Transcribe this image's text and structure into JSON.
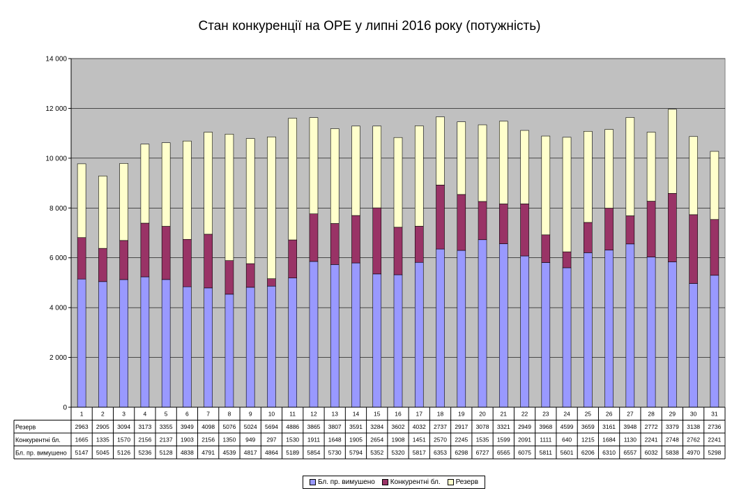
{
  "colors": {
    "plot_bg": "#c0c0c0",
    "series": [
      "#9999ff",
      "#993366",
      "#ffffcc"
    ]
  },
  "chart_data": {
    "type": "bar",
    "stacked": true,
    "title": "Стан конкуренції на ОРЕ  у липні 2016 року (потужність)",
    "categories": [
      "1",
      "2",
      "3",
      "4",
      "5",
      "6",
      "7",
      "8",
      "9",
      "10",
      "11",
      "12",
      "13",
      "14",
      "15",
      "16",
      "17",
      "18",
      "19",
      "20",
      "21",
      "22",
      "23",
      "24",
      "25",
      "26",
      "27",
      "28",
      "29",
      "30",
      "31"
    ],
    "ylim": [
      0,
      14000
    ],
    "yticks": [
      0,
      2000,
      4000,
      6000,
      8000,
      10000,
      12000,
      14000
    ],
    "ytick_labels": [
      "0",
      "2 000",
      "4 000",
      "6 000",
      "8 000",
      "10 000",
      "12 000",
      "14 000"
    ],
    "grid": true,
    "legend_position": "bottom",
    "table_below": true,
    "series": [
      {
        "name": "Бл. пр. вимушено",
        "values": [
          5147,
          5045,
          5126,
          5236,
          5128,
          4838,
          4791,
          4539,
          4817,
          4864,
          5189,
          5854,
          5730,
          5794,
          5352,
          5320,
          5817,
          6353,
          6298,
          6727,
          6565,
          6075,
          5811,
          5601,
          6206,
          6310,
          6557,
          6032,
          5838,
          4970,
          5298
        ]
      },
      {
        "name": "Конкурентні бл.",
        "values": [
          1665,
          1335,
          1570,
          2156,
          2137,
          1903,
          2156,
          1350,
          949,
          297,
          1530,
          1911,
          1648,
          1905,
          2654,
          1908,
          1451,
          2570,
          2245,
          1535,
          1599,
          2091,
          1111,
          640,
          1215,
          1684,
          1130,
          2241,
          2748,
          2762,
          2241
        ]
      },
      {
        "name": "Резерв",
        "values": [
          2963,
          2905,
          3094,
          3173,
          3355,
          3949,
          4098,
          5076,
          5024,
          5694,
          4886,
          3865,
          3807,
          3591,
          3284,
          3602,
          4032,
          2737,
          2917,
          3078,
          3321,
          2949,
          3968,
          4599,
          3659,
          3161,
          3948,
          2772,
          3379,
          3138,
          2736
        ]
      }
    ]
  }
}
